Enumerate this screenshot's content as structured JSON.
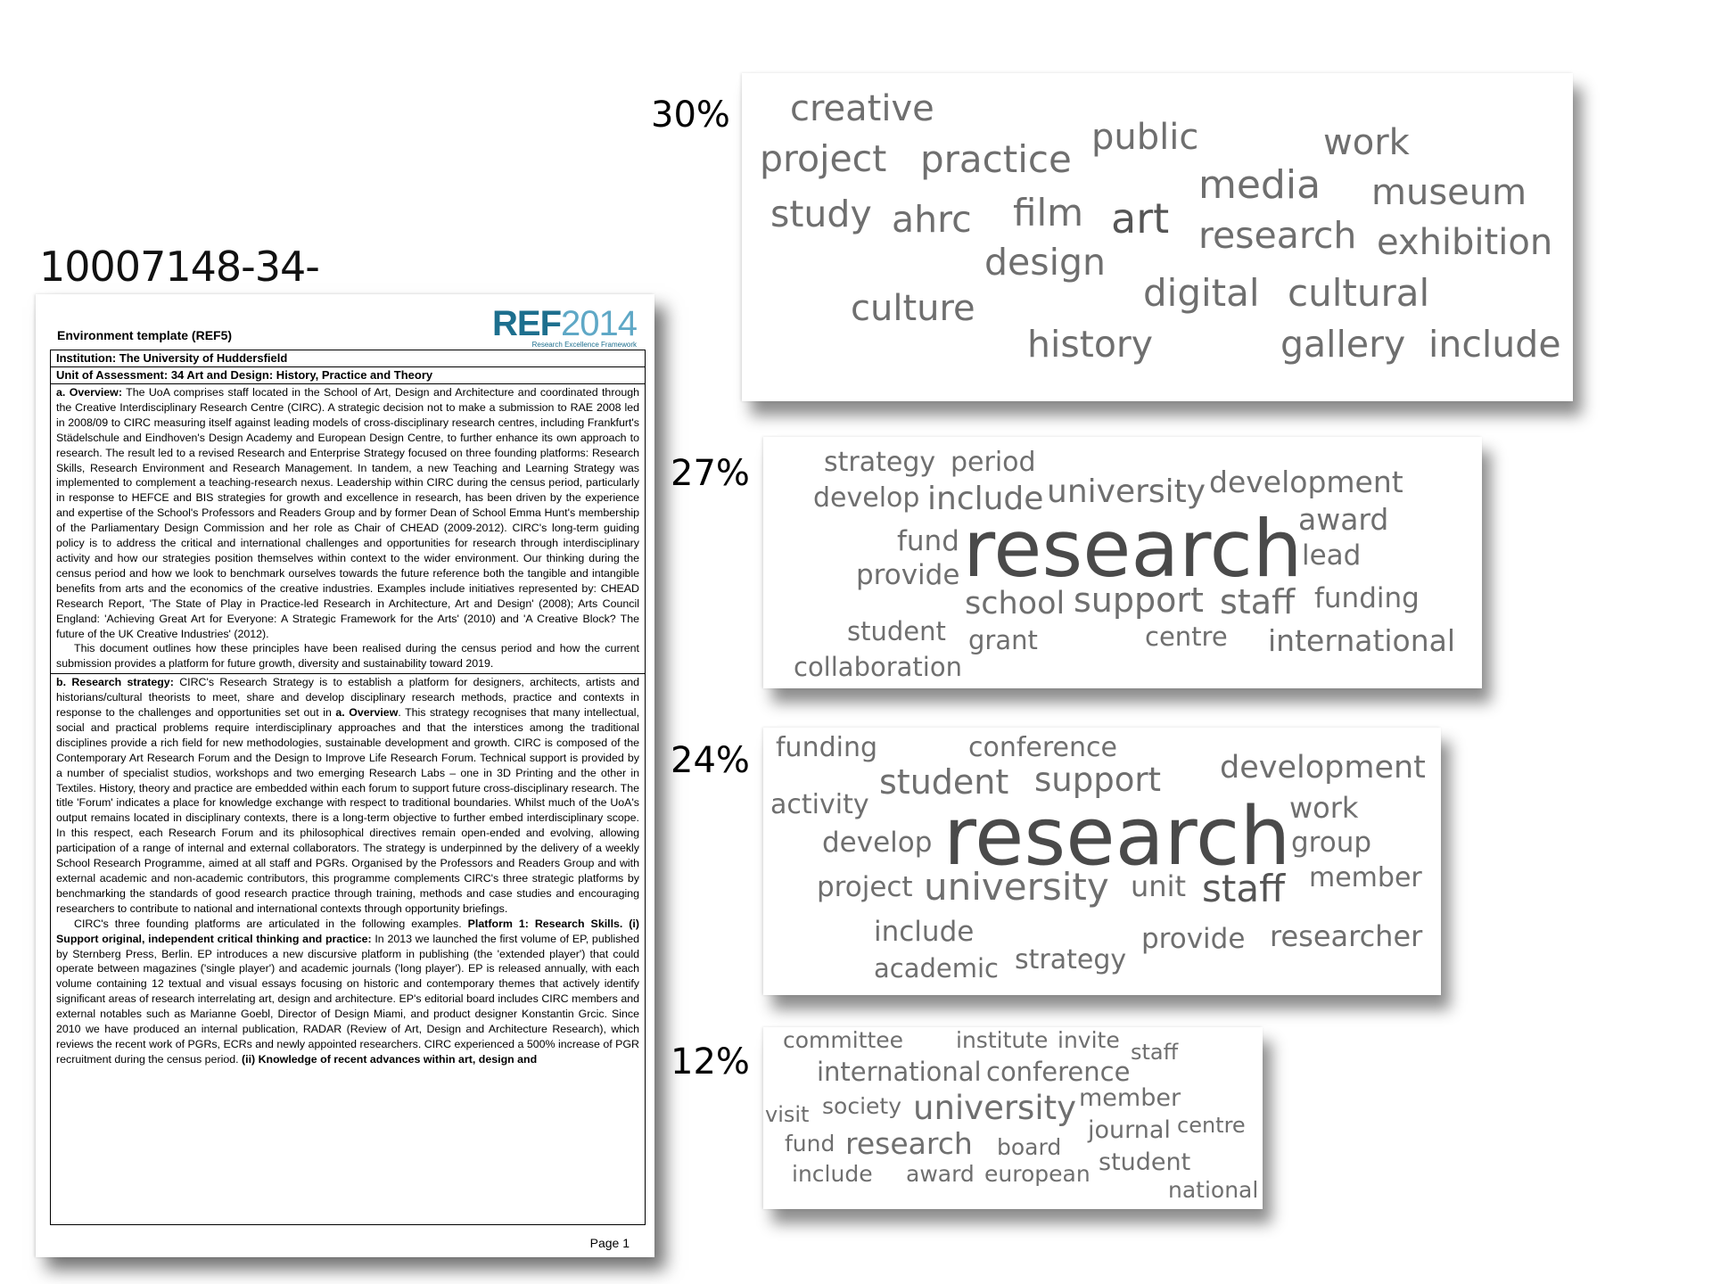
{
  "doc_id": "10007148-34-",
  "document": {
    "header": "Environment template (REF5)",
    "logo": {
      "ref": "REF",
      "year": "2014",
      "sub": "Research Excellence Framework"
    },
    "institution": "Institution: The University of Huddersfield",
    "unit": "Unit of Assessment: 34 Art and Design: History, Practice and Theory",
    "overview_lead": "a. Overview:",
    "overview_text": "The UoA comprises staff located in the School of Art, Design and Architecture and coordinated through the Creative Interdisciplinary Research Centre (CIRC). A strategic decision not to make a submission to RAE 2008 led in 2008/09 to CIRC measuring itself against leading models of cross-disciplinary research centres, including Frankfurt's Städelschule and Eindhoven's Design Academy and European Design Centre, to further enhance its own approach to research. The result led to a revised Research and Enterprise Strategy focused on three founding platforms: Research Skills, Research Environment and Research Management. In tandem, a new Teaching and Learning Strategy was implemented to complement a teaching-research nexus. Leadership within CIRC during the census period, particularly in response to HEFCE and BIS strategies for growth and excellence in research, has been driven by the experience and expertise of the School's Professors and Readers Group and by former Dean of School Emma Hunt's membership of the Parliamentary Design Commission and her role as Chair of CHEAD (2009-2012). CIRC's long-term guiding policy is to address the critical and international challenges and opportunities for research through interdisciplinary activity and how our strategies position themselves within context to the wider environment. Our thinking during the census period and how we look to benchmark ourselves towards the future reference both the tangible and intangible benefits from arts and the economics of the creative industries. Examples include initiatives represented by: CHEAD Research Report, 'The State of Play in Practice-led Research in Architecture, Art and Design' (2008); Arts Council England: 'Achieving Great Art for Everyone: A Strategic Framework for the Arts' (2010) and 'A Creative Block? The future of the UK Creative Industries' (2012).",
    "overview_text2": "This document outlines how these principles have been realised during the census period and how the current submission provides a platform for future growth, diversity and sustainability toward 2019.",
    "strategy_lead": "b. Research strategy:",
    "strategy_text1": "CIRC's Research Strategy is to establish a platform for designers, architects, artists and historians/cultural theorists to meet, share and develop disciplinary research methods, practice and contexts in response to the challenges and opportunities set out in",
    "strategy_bold1": "a. Overview",
    "strategy_text2": ". This strategy recognises that many intellectual, social and practical problems require interdisciplinary approaches and that the interstices among the traditional disciplines provide a rich field for new methodologies, sustainable development and growth. CIRC is composed of the Contemporary Art Research Forum and the Design to Improve Life Research Forum. Technical support is provided by a number of specialist studios, workshops and two emerging Research Labs – one in 3D Printing and the other in Textiles. History, theory and practice are embedded within each forum to support future cross-disciplinary research. The title 'Forum' indicates a place for knowledge exchange with respect to traditional boundaries. Whilst much of the UoA's output remains located in disciplinary contexts, there is a long-term objective to further embed interdisciplinary scope. In this respect, each Research Forum and its philosophical directives remain open-ended and evolving, allowing participation of a range of internal and external collaborators. The strategy is underpinned by the delivery of a weekly School Research Programme, aimed at all staff and PGRs. Organised by the Professors and Readers Group and with external academic and non-academic contributors, this programme complements CIRC's three strategic platforms by benchmarking the standards of good research practice through training, methods and case studies and encouraging researchers to contribute to national and international contexts through opportunity briefings.",
    "platforms_text1": "CIRC's three founding platforms are articulated in the following examples.",
    "platforms_bold1": "Platform 1: Research Skills. (i) Support original, independent critical thinking and practice:",
    "platforms_text2": "In 2013 we launched the first volume of EP, published by Sternberg Press, Berlin. EP introduces a new discursive platform in publishing (the 'extended player') that could operate between magazines ('single player') and academic journals ('long player'). EP is released annually, with each volume containing 12 textual and visual essays focusing on historic and contemporary themes that actively identify significant areas of research interrelating art, design and architecture. EP's editorial board includes CIRC members and external notables such as Marianne Goebl, Director of Design Miami, and product designer Konstantin Grcic. Since 2010 we have produced an internal publication, RADAR (Review of Art, Design and Architecture Research), which reviews the recent work of PGRs, ECRs and newly appointed researchers. CIRC experienced a 500% increase of PGR recruitment during the census period.",
    "platforms_bold2": "(ii) Knowledge of recent advances within art, design and",
    "page_label": "Page 1"
  },
  "clouds": [
    {
      "percent": "30%",
      "words": [
        "creative",
        "project",
        "practice",
        "public",
        "work",
        "media",
        "museum",
        "study",
        "ahrc",
        "film",
        "art",
        "research",
        "exhibition",
        "design",
        "culture",
        "digital",
        "cultural",
        "history",
        "gallery",
        "include"
      ]
    },
    {
      "percent": "27%",
      "words": [
        "strategy",
        "period",
        "develop",
        "include",
        "university",
        "development",
        "research",
        "award",
        "fund",
        "lead",
        "provide",
        "school",
        "support",
        "staff",
        "funding",
        "student",
        "grant",
        "centre",
        "international",
        "collaboration"
      ]
    },
    {
      "percent": "24%",
      "words": [
        "funding",
        "conference",
        "development",
        "student",
        "support",
        "activity",
        "research",
        "work",
        "develop",
        "group",
        "project",
        "university",
        "unit",
        "staff",
        "member",
        "include",
        "provide",
        "researcher",
        "academic",
        "strategy"
      ]
    },
    {
      "percent": "12%",
      "words": [
        "committee",
        "institute",
        "invite",
        "staff",
        "international",
        "conference",
        "visit",
        "society",
        "university",
        "member",
        "journal",
        "centre",
        "fund",
        "research",
        "board",
        "include",
        "award",
        "european",
        "student",
        "national"
      ]
    }
  ]
}
